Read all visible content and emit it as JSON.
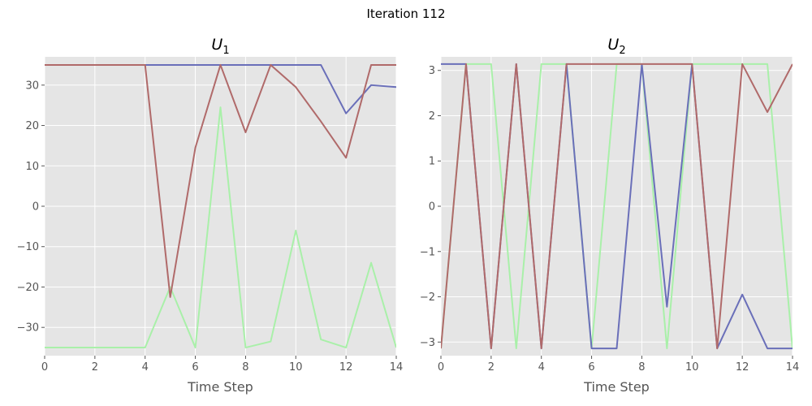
{
  "figure": {
    "suptitle": "Iteration 112"
  },
  "colors": {
    "blue": "#6a6fb9",
    "red": "#b06a6a",
    "green": "#a9f0a9",
    "plot_bg": "#e5e5e5",
    "grid": "#ffffff",
    "text": "#555555"
  },
  "chart_data": [
    {
      "type": "line",
      "title": "U",
      "title_sub": "1",
      "xlabel": "Time Step",
      "ylabel": "",
      "xlim": [
        0,
        14
      ],
      "ylim": [
        -37,
        37
      ],
      "xticks": [
        0,
        2,
        4,
        6,
        8,
        10,
        12,
        14
      ],
      "yticks": [
        -30,
        -20,
        -10,
        0,
        10,
        20,
        30
      ],
      "ytick_labels": [
        "−30",
        "−20",
        "−10",
        "0",
        "10",
        "20",
        "30"
      ],
      "grid": true,
      "x": [
        0,
        1,
        2,
        3,
        4,
        5,
        6,
        7,
        8,
        9,
        10,
        11,
        12,
        13,
        14
      ],
      "series": [
        {
          "color": "#a9f0a9",
          "values": [
            -35,
            -35,
            -35,
            -35,
            -35,
            -20,
            -35,
            24.5,
            -35,
            -33.5,
            -6,
            -33,
            -35,
            -14,
            -35
          ]
        },
        {
          "color": "#6a6fb9",
          "values": [
            35,
            35,
            35,
            35,
            35,
            35,
            35,
            35,
            35,
            35,
            35,
            35,
            23,
            30,
            29.5
          ]
        },
        {
          "color": "#b06a6a",
          "values": [
            35,
            35,
            35,
            35,
            35,
            -22.5,
            14.5,
            35,
            18.3,
            35,
            29.5,
            21,
            12,
            35,
            35
          ]
        }
      ]
    },
    {
      "type": "line",
      "title": "U",
      "title_sub": "2",
      "xlabel": "Time Step",
      "ylabel": "",
      "xlim": [
        0,
        14
      ],
      "ylim": [
        -3.3,
        3.3
      ],
      "xticks": [
        0,
        2,
        4,
        6,
        8,
        10,
        12,
        14
      ],
      "yticks": [
        -3,
        -2,
        -1,
        0,
        1,
        2,
        3
      ],
      "ytick_labels": [
        "−3",
        "−2",
        "−1",
        "0",
        "1",
        "2",
        "3"
      ],
      "grid": true,
      "x": [
        0,
        1,
        2,
        3,
        4,
        5,
        6,
        7,
        8,
        9,
        10,
        11,
        12,
        13,
        14
      ],
      "series": [
        {
          "color": "#a9f0a9",
          "values": [
            -3.14,
            3.14,
            3.14,
            -3.14,
            3.14,
            3.14,
            -3.14,
            3.14,
            3.14,
            -3.14,
            3.14,
            3.14,
            3.14,
            3.14,
            -3.14
          ]
        },
        {
          "color": "#6a6fb9",
          "values": [
            3.14,
            3.14,
            -3.14,
            3.14,
            -3.14,
            3.14,
            -3.14,
            -3.14,
            3.14,
            -2.22,
            3.14,
            -3.14,
            -1.95,
            -3.14,
            -3.14
          ]
        },
        {
          "color": "#b06a6a",
          "values": [
            -3.14,
            3.14,
            -3.14,
            3.14,
            -3.14,
            3.14,
            3.14,
            3.14,
            3.14,
            3.14,
            3.14,
            -3.14,
            3.14,
            2.08,
            3.14
          ]
        }
      ]
    }
  ]
}
